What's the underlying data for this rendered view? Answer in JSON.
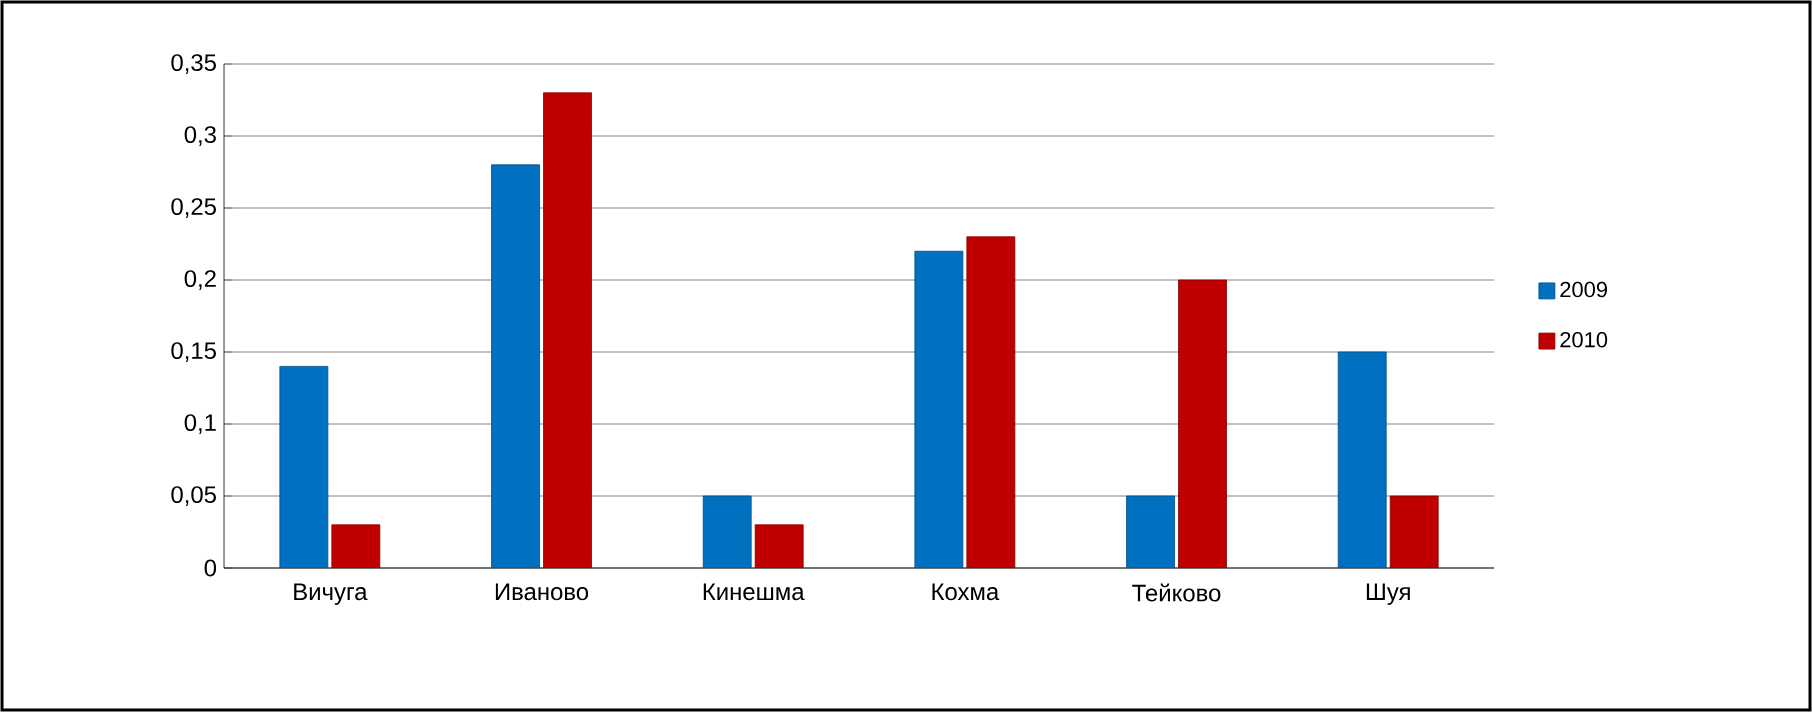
{
  "chart_data": {
    "type": "bar",
    "categories": [
      "Вичуга",
      "Иваново",
      "Кинешма",
      "Кохма",
      "Тейково",
      "Шуя"
    ],
    "series": [
      {
        "name": "2009",
        "color": "#0070c0",
        "values": [
          0.14,
          0.28,
          0.05,
          0.22,
          0.05,
          0.15
        ]
      },
      {
        "name": "2010",
        "color": "#c00000",
        "values": [
          0.03,
          0.33,
          0.03,
          0.23,
          0.2,
          0.05
        ]
      }
    ],
    "ylim": [
      0,
      0.35
    ],
    "yticks": [
      {
        "value": 0,
        "label": "0"
      },
      {
        "value": 0.05,
        "label": "0,05"
      },
      {
        "value": 0.1,
        "label": "0,1"
      },
      {
        "value": 0.15,
        "label": "0,15"
      },
      {
        "value": 0.2,
        "label": "0,2"
      },
      {
        "value": 0.25,
        "label": "0,25"
      },
      {
        "value": 0.3,
        "label": "0,3"
      },
      {
        "value": 0.35,
        "label": "0,35"
      }
    ],
    "grid": true,
    "legend": "right"
  }
}
